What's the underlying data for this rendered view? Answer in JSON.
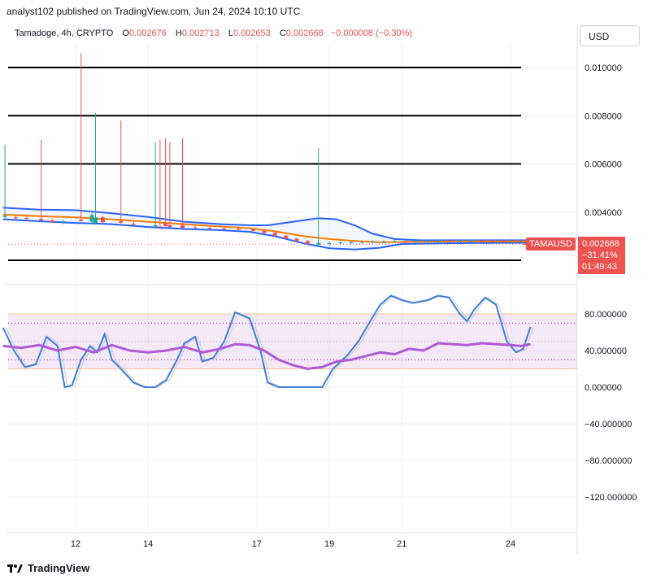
{
  "header": {
    "published": "analyst102 published on TradingView.com, Jun 24, 2024 10:10 UTC"
  },
  "legend": {
    "symbol": "Tamadoge, 4h, CRYPTO",
    "o_label": "O",
    "o_value": "0.002676",
    "h_label": "H",
    "h_value": "0.002713",
    "l_label": "L",
    "l_value": "0.002653",
    "c_label": "C",
    "c_value": "0.002668",
    "change": "−0.000008 (−0.30%)"
  },
  "currency_button": "USD",
  "price_badge": {
    "ticker": "TAMAUSD",
    "price": "0.002668",
    "change_pct": "−31.41%",
    "countdown": "01:49:43"
  },
  "footer": {
    "logo_text": "TradingView"
  },
  "colors": {
    "up": "#26a69a",
    "down": "#ef5350",
    "bb": "#2962ff",
    "ma": "#f57c00",
    "k": "#2962ff",
    "d": "#9c27b0",
    "band": "#e1bee7"
  },
  "chart_data": [
    {
      "type": "candlestick",
      "title": "Tamadoge, 4h, CRYPTO",
      "ylim": [
        0.0015,
        0.0106
      ],
      "y_ticks": [
        "0.010000",
        "0.008000",
        "0.006000",
        "0.004000"
      ],
      "y_tick_values": [
        0.01,
        0.008,
        0.006,
        0.004
      ],
      "x_ticks": [
        "12",
        "14",
        "17",
        "19",
        "21",
        "24"
      ],
      "x_tick_pos": [
        12,
        14,
        17,
        19,
        21,
        24
      ],
      "x_range": [
        10.0,
        25.8
      ],
      "horizontal_lines": [
        0.01,
        0.008,
        0.006,
        0.002
      ],
      "last_price": 0.002668,
      "candles": [
        {
          "x": 10.05,
          "o": 0.0038,
          "h": 0.0068,
          "l": 0.00372,
          "c": 0.00385
        },
        {
          "x": 10.35,
          "o": 0.00378,
          "h": 0.00385,
          "l": 0.0037,
          "c": 0.00374
        },
        {
          "x": 10.65,
          "o": 0.00376,
          "h": 0.00382,
          "l": 0.00368,
          "c": 0.00372
        },
        {
          "x": 11.05,
          "o": 0.00372,
          "h": 0.007,
          "l": 0.00362,
          "c": 0.00366
        },
        {
          "x": 11.35,
          "o": 0.00366,
          "h": 0.00374,
          "l": 0.00355,
          "c": 0.00358
        },
        {
          "x": 11.65,
          "o": 0.00358,
          "h": 0.00368,
          "l": 0.0035,
          "c": 0.00362
        },
        {
          "x": 12.15,
          "o": 0.00368,
          "h": 0.0106,
          "l": 0.0036,
          "c": 0.00362
        },
        {
          "x": 12.45,
          "o": 0.0036,
          "h": 0.00398,
          "l": 0.0035,
          "c": 0.00388
        },
        {
          "x": 12.55,
          "o": 0.00355,
          "h": 0.0081,
          "l": 0.0035,
          "c": 0.00378
        },
        {
          "x": 12.75,
          "o": 0.00378,
          "h": 0.00385,
          "l": 0.00352,
          "c": 0.00358
        },
        {
          "x": 13.25,
          "o": 0.00362,
          "h": 0.0078,
          "l": 0.00352,
          "c": 0.00356
        },
        {
          "x": 13.6,
          "o": 0.00352,
          "h": 0.0036,
          "l": 0.00345,
          "c": 0.00348
        },
        {
          "x": 14.2,
          "o": 0.00338,
          "h": 0.0069,
          "l": 0.0033,
          "c": 0.00345
        },
        {
          "x": 14.33,
          "o": 0.0034,
          "h": 0.007,
          "l": 0.0033,
          "c": 0.00338
        },
        {
          "x": 14.48,
          "o": 0.00352,
          "h": 0.00705,
          "l": 0.00338,
          "c": 0.00342
        },
        {
          "x": 14.6,
          "o": 0.00345,
          "h": 0.0069,
          "l": 0.00335,
          "c": 0.00338
        },
        {
          "x": 14.95,
          "o": 0.00345,
          "h": 0.00705,
          "l": 0.0033,
          "c": 0.00335
        },
        {
          "x": 15.3,
          "o": 0.00336,
          "h": 0.00342,
          "l": 0.0033,
          "c": 0.00333
        },
        {
          "x": 15.7,
          "o": 0.00334,
          "h": 0.0034,
          "l": 0.00328,
          "c": 0.00331
        },
        {
          "x": 16.1,
          "o": 0.00332,
          "h": 0.00338,
          "l": 0.00326,
          "c": 0.00329
        },
        {
          "x": 16.5,
          "o": 0.0033,
          "h": 0.00336,
          "l": 0.00325,
          "c": 0.00327
        },
        {
          "x": 16.9,
          "o": 0.00328,
          "h": 0.00332,
          "l": 0.00318,
          "c": 0.00322
        },
        {
          "x": 17.2,
          "o": 0.00322,
          "h": 0.00326,
          "l": 0.0031,
          "c": 0.00314
        },
        {
          "x": 17.5,
          "o": 0.00314,
          "h": 0.00318,
          "l": 0.00298,
          "c": 0.00302
        },
        {
          "x": 17.8,
          "o": 0.00302,
          "h": 0.00306,
          "l": 0.00286,
          "c": 0.0029
        },
        {
          "x": 18.1,
          "o": 0.0029,
          "h": 0.00294,
          "l": 0.00275,
          "c": 0.0028
        },
        {
          "x": 18.4,
          "o": 0.0028,
          "h": 0.00284,
          "l": 0.00264,
          "c": 0.00268
        },
        {
          "x": 18.7,
          "o": 0.00265,
          "h": 0.00665,
          "l": 0.00258,
          "c": 0.00272
        },
        {
          "x": 19.0,
          "o": 0.00268,
          "h": 0.00276,
          "l": 0.00262,
          "c": 0.00272
        },
        {
          "x": 19.3,
          "o": 0.0027,
          "h": 0.00278,
          "l": 0.00265,
          "c": 0.00274
        },
        {
          "x": 19.6,
          "o": 0.00272,
          "h": 0.00279,
          "l": 0.00267,
          "c": 0.00275
        },
        {
          "x": 19.9,
          "o": 0.00274,
          "h": 0.00281,
          "l": 0.00268,
          "c": 0.00277
        },
        {
          "x": 20.2,
          "o": 0.00276,
          "h": 0.00282,
          "l": 0.0027,
          "c": 0.00278
        },
        {
          "x": 20.5,
          "o": 0.00277,
          "h": 0.00282,
          "l": 0.00271,
          "c": 0.00279
        },
        {
          "x": 20.8,
          "o": 0.00278,
          "h": 0.00283,
          "l": 0.00273,
          "c": 0.0028
        },
        {
          "x": 21.1,
          "o": 0.0028,
          "h": 0.00284,
          "l": 0.00274,
          "c": 0.00278
        },
        {
          "x": 21.4,
          "o": 0.00278,
          "h": 0.00283,
          "l": 0.00274,
          "c": 0.00279
        },
        {
          "x": 21.7,
          "o": 0.00279,
          "h": 0.00284,
          "l": 0.00275,
          "c": 0.0028
        },
        {
          "x": 22.0,
          "o": 0.0028,
          "h": 0.00285,
          "l": 0.00275,
          "c": 0.00281
        },
        {
          "x": 22.3,
          "o": 0.00281,
          "h": 0.00285,
          "l": 0.00276,
          "c": 0.00279
        },
        {
          "x": 22.6,
          "o": 0.00279,
          "h": 0.00284,
          "l": 0.00275,
          "c": 0.0028
        },
        {
          "x": 22.9,
          "o": 0.0028,
          "h": 0.00285,
          "l": 0.00276,
          "c": 0.00281
        },
        {
          "x": 23.2,
          "o": 0.00281,
          "h": 0.00285,
          "l": 0.00276,
          "c": 0.0028
        },
        {
          "x": 23.5,
          "o": 0.0028,
          "h": 0.00284,
          "l": 0.00275,
          "c": 0.00279
        },
        {
          "x": 23.8,
          "o": 0.00279,
          "h": 0.00284,
          "l": 0.00274,
          "c": 0.00278
        },
        {
          "x": 24.1,
          "o": 0.00277,
          "h": 0.00282,
          "l": 0.00272,
          "c": 0.00276
        },
        {
          "x": 24.4,
          "o": 0.002676,
          "h": 0.002713,
          "l": 0.002653,
          "c": 0.002668
        }
      ],
      "bollinger_upper": [
        [
          10,
          0.00418
        ],
        [
          11,
          0.0041
        ],
        [
          12,
          0.00408
        ],
        [
          13,
          0.00395
        ],
        [
          14,
          0.0038
        ],
        [
          15,
          0.0036
        ],
        [
          16,
          0.0035
        ],
        [
          16.8,
          0.00345
        ],
        [
          17.3,
          0.00345
        ],
        [
          18.0,
          0.0036
        ],
        [
          18.7,
          0.00375
        ],
        [
          19.2,
          0.0037
        ],
        [
          19.7,
          0.00345
        ],
        [
          20.2,
          0.0031
        ],
        [
          20.8,
          0.00288
        ],
        [
          21.5,
          0.00283
        ],
        [
          23,
          0.00283
        ],
        [
          24.6,
          0.00283
        ]
      ],
      "bollinger_lower": [
        [
          10,
          0.0037
        ],
        [
          11,
          0.00362
        ],
        [
          12,
          0.00355
        ],
        [
          13,
          0.0035
        ],
        [
          14,
          0.00338
        ],
        [
          15,
          0.0033
        ],
        [
          16,
          0.00325
        ],
        [
          16.8,
          0.00318
        ],
        [
          17.5,
          0.003
        ],
        [
          18.3,
          0.0027
        ],
        [
          19.0,
          0.0025
        ],
        [
          19.7,
          0.00245
        ],
        [
          20.4,
          0.00252
        ],
        [
          21.0,
          0.00268
        ],
        [
          22,
          0.0027
        ],
        [
          23,
          0.00272
        ],
        [
          24.6,
          0.00273
        ]
      ],
      "moving_average": [
        [
          10,
          0.0039
        ],
        [
          11,
          0.00383
        ],
        [
          12,
          0.00378
        ],
        [
          13,
          0.0037
        ],
        [
          14,
          0.0036
        ],
        [
          15,
          0.0035
        ],
        [
          16,
          0.0034
        ],
        [
          16.8,
          0.00333
        ],
        [
          17.5,
          0.0032
        ],
        [
          18.3,
          0.003
        ],
        [
          19.0,
          0.00288
        ],
        [
          19.7,
          0.0028
        ],
        [
          20.4,
          0.00275
        ],
        [
          21.0,
          0.00276
        ],
        [
          22,
          0.00278
        ],
        [
          23,
          0.00279
        ],
        [
          24.6,
          0.00279
        ]
      ]
    },
    {
      "type": "line",
      "title": "Stochastic RSI",
      "ylim": [
        -150,
        100
      ],
      "y_ticks": [
        "80.000000",
        "40.000000",
        "0.000000",
        "−40.000000",
        "−80.000000",
        "−120.000000"
      ],
      "y_tick_values": [
        80,
        40,
        0,
        -40,
        -80,
        -120
      ],
      "band": [
        20,
        80
      ],
      "series": [
        {
          "role": "K",
          "points": [
            [
              10,
              65
            ],
            [
              10.3,
              40
            ],
            [
              10.6,
              22
            ],
            [
              10.9,
              25
            ],
            [
              11.2,
              55
            ],
            [
              11.5,
              45
            ],
            [
              11.7,
              0
            ],
            [
              11.9,
              2
            ],
            [
              12.15,
              30
            ],
            [
              12.4,
              45
            ],
            [
              12.6,
              38
            ],
            [
              12.8,
              58
            ],
            [
              13.0,
              30
            ],
            [
              13.3,
              18
            ],
            [
              13.6,
              5
            ],
            [
              13.9,
              0
            ],
            [
              14.2,
              0
            ],
            [
              14.5,
              8
            ],
            [
              14.8,
              30
            ],
            [
              15.0,
              48
            ],
            [
              15.3,
              55
            ],
            [
              15.5,
              28
            ],
            [
              15.8,
              32
            ],
            [
              16.1,
              50
            ],
            [
              16.4,
              82
            ],
            [
              16.8,
              75
            ],
            [
              17.1,
              40
            ],
            [
              17.3,
              5
            ],
            [
              17.6,
              0
            ],
            [
              17.9,
              0
            ],
            [
              18.2,
              0
            ],
            [
              18.5,
              0
            ],
            [
              18.8,
              0
            ],
            [
              19.1,
              20
            ],
            [
              19.5,
              35
            ],
            [
              19.8,
              50
            ],
            [
              20.1,
              70
            ],
            [
              20.4,
              90
            ],
            [
              20.7,
              100
            ],
            [
              21.0,
              95
            ],
            [
              21.3,
              92
            ],
            [
              21.7,
              95
            ],
            [
              22.0,
              100
            ],
            [
              22.3,
              98
            ],
            [
              22.6,
              80
            ],
            [
              22.8,
              72
            ],
            [
              23.0,
              85
            ],
            [
              23.3,
              98
            ],
            [
              23.6,
              90
            ],
            [
              23.9,
              50
            ],
            [
              24.15,
              38
            ],
            [
              24.35,
              42
            ],
            [
              24.55,
              66
            ]
          ]
        },
        {
          "role": "D",
          "points": [
            [
              10,
              45
            ],
            [
              10.5,
              43
            ],
            [
              11,
              46
            ],
            [
              11.5,
              40
            ],
            [
              12,
              44
            ],
            [
              12.5,
              38
            ],
            [
              13,
              46
            ],
            [
              13.5,
              40
            ],
            [
              14,
              38
            ],
            [
              14.5,
              40
            ],
            [
              15,
              44
            ],
            [
              15.5,
              38
            ],
            [
              16,
              42
            ],
            [
              16.4,
              47
            ],
            [
              16.8,
              46
            ],
            [
              17.2,
              40
            ],
            [
              17.6,
              30
            ],
            [
              18.0,
              24
            ],
            [
              18.4,
              20
            ],
            [
              18.8,
              22
            ],
            [
              19.2,
              28
            ],
            [
              19.6,
              30
            ],
            [
              20.0,
              34
            ],
            [
              20.4,
              38
            ],
            [
              20.8,
              36
            ],
            [
              21.2,
              42
            ],
            [
              21.6,
              40
            ],
            [
              22.0,
              48
            ],
            [
              22.4,
              47
            ],
            [
              22.8,
              46
            ],
            [
              23.2,
              48
            ],
            [
              23.6,
              47
            ],
            [
              24.0,
              46
            ],
            [
              24.3,
              45
            ],
            [
              24.55,
              47
            ]
          ]
        }
      ]
    }
  ]
}
